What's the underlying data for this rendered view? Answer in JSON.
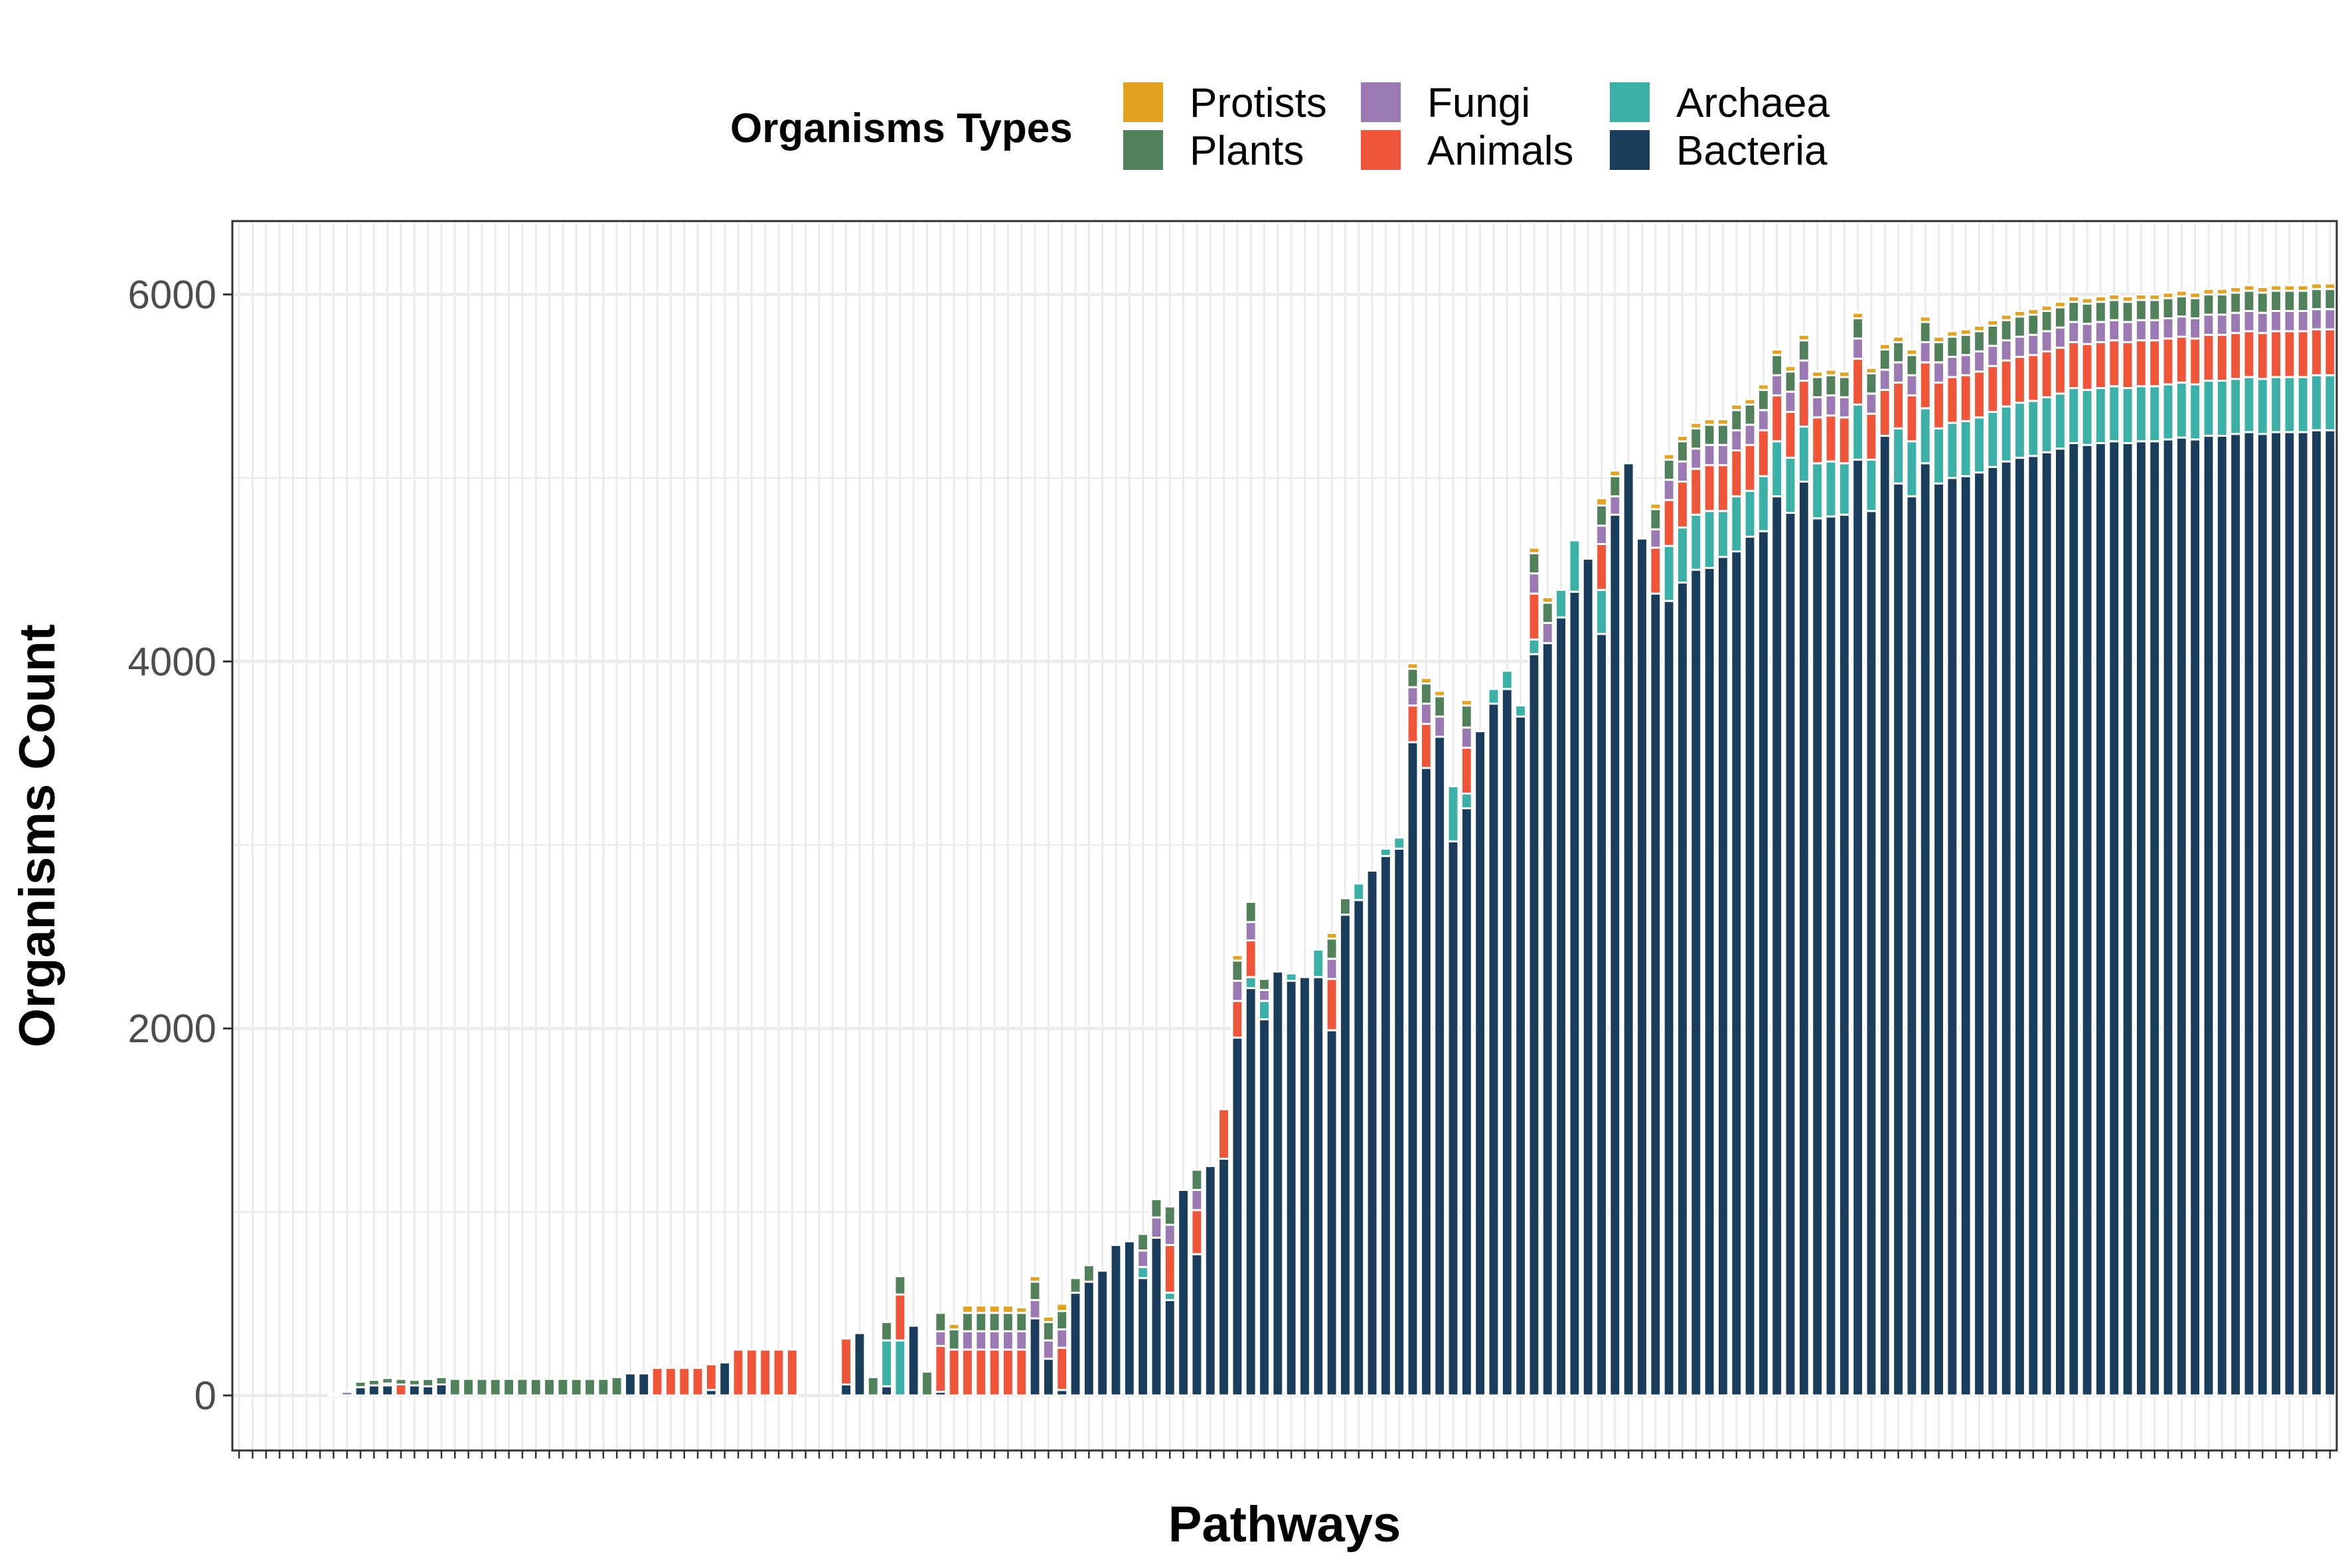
{
  "chart_data": {
    "type": "bar",
    "stacked": true,
    "xlabel": "Pathways",
    "ylabel": "Organisms Count",
    "ylim": [
      -300,
      6400
    ],
    "yticks": [
      0,
      2000,
      4000,
      6000
    ],
    "x_tick_labels_shown": false,
    "grid": true,
    "legend": {
      "title": "Organisms Types",
      "position": "top",
      "entries": [
        "Protists",
        "Plants",
        "Fungi",
        "Animals",
        "Archaea",
        "Bacteria"
      ]
    },
    "series": [
      {
        "name": "Bacteria",
        "color": "#1a3d5c",
        "values": [
          0,
          0,
          0,
          0,
          0,
          0,
          0,
          0,
          0,
          45,
          55,
          55,
          0,
          55,
          50,
          60,
          0,
          0,
          0,
          0,
          0,
          0,
          0,
          0,
          0,
          0,
          0,
          0,
          0,
          120,
          120,
          0,
          0,
          0,
          0,
          30,
          180,
          0,
          0,
          0,
          0,
          0,
          0,
          0,
          0,
          60,
          340,
          0,
          50,
          0,
          380,
          0,
          20,
          0,
          0,
          0,
          0,
          0,
          0,
          420,
          200,
          30,
          560,
          620,
          680,
          820,
          840,
          640,
          860,
          520,
          1120,
          770,
          1250,
          1290,
          1950,
          2220,
          2050,
          2310,
          2260,
          2280,
          2280,
          1990,
          2620,
          2700,
          2860,
          2940,
          2980,
          3560,
          3420,
          3590,
          3020,
          3200,
          3620,
          3770,
          3850,
          3700,
          4040,
          4100,
          4240,
          4380,
          4560,
          4150,
          4800,
          5080,
          4670,
          4370,
          4330,
          4430,
          4500,
          4510,
          4570,
          4600,
          4680,
          4710,
          4900,
          4810,
          4980,
          4780,
          4790,
          4800,
          5100,
          4820,
          5230,
          4970,
          4900,
          5080,
          4970,
          5000,
          5010,
          5030,
          5060,
          5090,
          5110,
          5120,
          5140,
          5160,
          5190,
          5180,
          5190,
          5200,
          5190,
          5200,
          5200,
          5210,
          5220,
          5210,
          5230,
          5230,
          5240,
          5250,
          5240,
          5250,
          5250,
          5250,
          5260,
          5260
        ]
      },
      {
        "name": "Archaea",
        "color": "#3bb0a7",
        "values": [
          0,
          0,
          0,
          0,
          0,
          0,
          0,
          0,
          0,
          0,
          0,
          0,
          0,
          0,
          0,
          0,
          0,
          0,
          0,
          0,
          0,
          0,
          0,
          0,
          0,
          0,
          0,
          0,
          0,
          0,
          0,
          0,
          0,
          0,
          0,
          0,
          0,
          0,
          0,
          0,
          0,
          0,
          0,
          0,
          0,
          0,
          0,
          0,
          250,
          300,
          0,
          0,
          0,
          0,
          0,
          0,
          0,
          0,
          0,
          0,
          0,
          0,
          0,
          0,
          0,
          0,
          0,
          60,
          0,
          40,
          0,
          0,
          0,
          0,
          0,
          60,
          100,
          0,
          40,
          0,
          150,
          0,
          0,
          90,
          0,
          40,
          60,
          0,
          0,
          0,
          300,
          80,
          0,
          80,
          100,
          60,
          80,
          0,
          150,
          280,
          0,
          240,
          0,
          0,
          0,
          0,
          300,
          300,
          300,
          310,
          250,
          300,
          250,
          300,
          300,
          300,
          300,
          300,
          300,
          280,
          300,
          280,
          0,
          300,
          300,
          300,
          300,
          300,
          300,
          300,
          300,
          300,
          300,
          300,
          300,
          300,
          300,
          300,
          300,
          300,
          300,
          300,
          300,
          300,
          300,
          300,
          300,
          300,
          300,
          300,
          300,
          300,
          300,
          300,
          300,
          300
        ]
      },
      {
        "name": "Animals",
        "color": "#ef5639",
        "values": [
          0,
          0,
          0,
          0,
          0,
          0,
          0,
          0,
          0,
          0,
          0,
          10,
          60,
          0,
          0,
          0,
          0,
          0,
          0,
          0,
          0,
          0,
          0,
          0,
          0,
          0,
          0,
          0,
          0,
          0,
          0,
          150,
          150,
          150,
          150,
          140,
          0,
          250,
          250,
          250,
          250,
          250,
          0,
          0,
          0,
          250,
          0,
          0,
          0,
          250,
          0,
          0,
          250,
          250,
          250,
          250,
          250,
          250,
          250,
          0,
          0,
          230,
          0,
          0,
          0,
          0,
          0,
          0,
          0,
          260,
          0,
          240,
          0,
          270,
          200,
          200,
          0,
          0,
          0,
          0,
          0,
          280,
          0,
          0,
          0,
          0,
          0,
          200,
          240,
          0,
          0,
          250,
          0,
          0,
          0,
          0,
          250,
          0,
          0,
          0,
          0,
          250,
          0,
          0,
          0,
          250,
          250,
          250,
          250,
          250,
          250,
          250,
          250,
          250,
          250,
          250,
          250,
          250,
          250,
          250,
          250,
          250,
          250,
          250,
          250,
          250,
          250,
          250,
          250,
          250,
          250,
          250,
          250,
          250,
          250,
          250,
          250,
          250,
          250,
          250,
          250,
          250,
          250,
          250,
          250,
          250,
          250,
          250,
          250,
          250,
          250,
          250,
          250,
          250,
          250,
          250
        ]
      },
      {
        "name": "Fungi",
        "color": "#9b79b2",
        "values": [
          0,
          0,
          0,
          0,
          0,
          0,
          0,
          5,
          20,
          0,
          0,
          0,
          0,
          0,
          0,
          0,
          0,
          0,
          0,
          0,
          0,
          0,
          0,
          0,
          0,
          0,
          0,
          0,
          0,
          0,
          0,
          0,
          0,
          0,
          0,
          0,
          0,
          0,
          0,
          0,
          0,
          0,
          0,
          0,
          0,
          0,
          0,
          0,
          0,
          0,
          0,
          0,
          80,
          0,
          100,
          100,
          100,
          100,
          100,
          100,
          100,
          100,
          0,
          0,
          0,
          0,
          0,
          90,
          110,
          110,
          0,
          110,
          0,
          0,
          110,
          100,
          60,
          0,
          0,
          0,
          0,
          110,
          0,
          0,
          0,
          0,
          0,
          100,
          110,
          110,
          0,
          110,
          0,
          0,
          0,
          0,
          110,
          110,
          0,
          0,
          0,
          100,
          100,
          0,
          0,
          100,
          110,
          110,
          110,
          110,
          110,
          110,
          110,
          110,
          110,
          110,
          110,
          110,
          110,
          110,
          110,
          110,
          110,
          110,
          110,
          110,
          110,
          110,
          110,
          110,
          110,
          110,
          110,
          110,
          110,
          110,
          110,
          110,
          110,
          110,
          110,
          110,
          110,
          110,
          110,
          110,
          110,
          110,
          110,
          110,
          110,
          110,
          110,
          110,
          110,
          110
        ]
      },
      {
        "name": "Plants",
        "color": "#51815a",
        "values": [
          0,
          0,
          0,
          0,
          0,
          0,
          0,
          0,
          0,
          30,
          30,
          30,
          30,
          30,
          40,
          40,
          90,
          90,
          90,
          90,
          90,
          90,
          90,
          90,
          90,
          90,
          90,
          90,
          100,
          0,
          0,
          0,
          0,
          0,
          0,
          0,
          0,
          0,
          0,
          0,
          0,
          0,
          0,
          0,
          0,
          0,
          0,
          100,
          100,
          100,
          0,
          130,
          100,
          110,
          100,
          100,
          100,
          100,
          100,
          100,
          100,
          100,
          80,
          90,
          0,
          0,
          0,
          90,
          100,
          100,
          0,
          110,
          0,
          0,
          110,
          110,
          60,
          0,
          0,
          0,
          0,
          110,
          90,
          0,
          0,
          0,
          0,
          100,
          110,
          110,
          0,
          120,
          0,
          0,
          0,
          0,
          110,
          110,
          0,
          0,
          0,
          110,
          110,
          0,
          0,
          110,
          110,
          110,
          110,
          110,
          110,
          110,
          110,
          110,
          110,
          110,
          110,
          110,
          110,
          110,
          110,
          110,
          110,
          110,
          110,
          110,
          110,
          110,
          110,
          110,
          110,
          110,
          110,
          110,
          110,
          110,
          110,
          110,
          110,
          110,
          110,
          110,
          110,
          110,
          110,
          110,
          110,
          110,
          110,
          110,
          110,
          110,
          110,
          110,
          110,
          110
        ]
      },
      {
        "name": "Protists",
        "color": "#e3a321",
        "values": [
          0,
          0,
          0,
          0,
          0,
          0,
          0,
          0,
          0,
          0,
          0,
          0,
          0,
          0,
          0,
          0,
          0,
          0,
          0,
          0,
          0,
          0,
          0,
          0,
          0,
          0,
          0,
          0,
          0,
          0,
          0,
          0,
          0,
          0,
          0,
          0,
          0,
          0,
          0,
          0,
          0,
          0,
          0,
          0,
          0,
          0,
          0,
          0,
          0,
          0,
          0,
          0,
          0,
          30,
          40,
          40,
          40,
          40,
          30,
          30,
          30,
          40,
          0,
          0,
          0,
          0,
          0,
          0,
          0,
          0,
          0,
          0,
          0,
          0,
          30,
          0,
          0,
          0,
          0,
          0,
          0,
          30,
          0,
          0,
          0,
          0,
          0,
          30,
          30,
          30,
          0,
          30,
          0,
          0,
          0,
          0,
          30,
          30,
          0,
          0,
          0,
          40,
          30,
          0,
          0,
          30,
          30,
          30,
          30,
          30,
          30,
          30,
          30,
          30,
          30,
          30,
          30,
          30,
          30,
          30,
          30,
          30,
          30,
          30,
          30,
          30,
          30,
          30,
          30,
          30,
          30,
          30,
          30,
          30,
          30,
          30,
          30,
          30,
          30,
          30,
          30,
          30,
          30,
          30,
          30,
          30,
          30,
          30,
          30,
          30,
          30,
          30,
          30,
          30,
          30,
          30
        ]
      }
    ]
  }
}
